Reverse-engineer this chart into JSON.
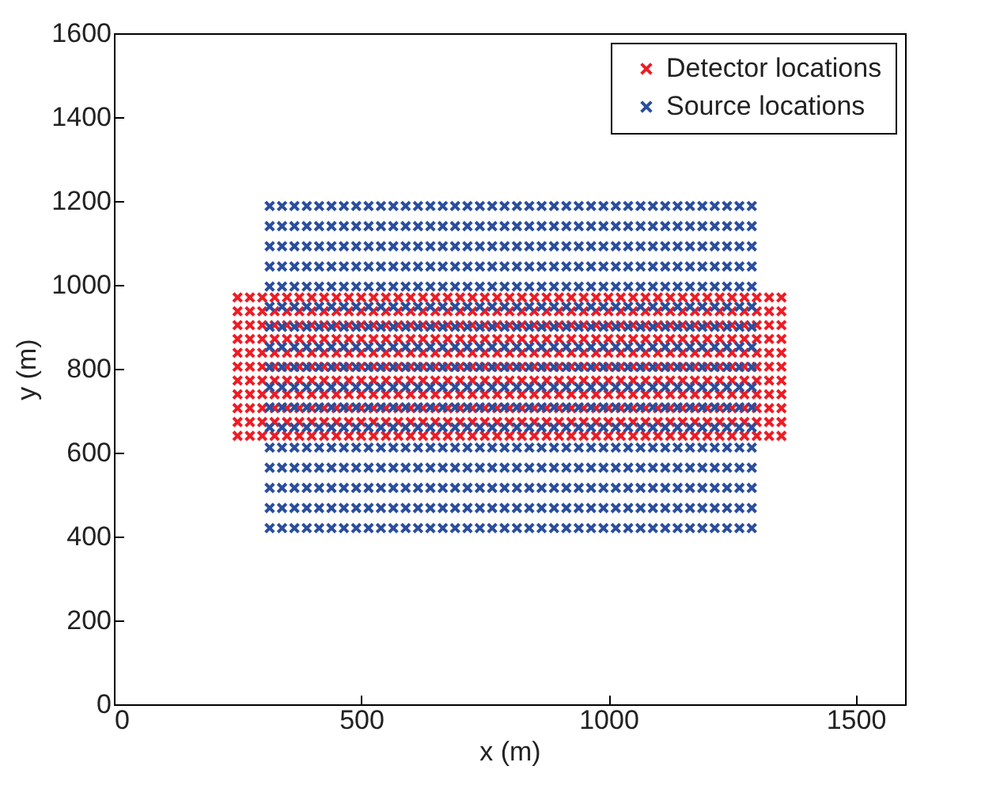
{
  "chart_data": {
    "type": "scatter",
    "xlabel": "x (m)",
    "ylabel": "y (m)",
    "xlim": [
      0,
      1600
    ],
    "xticks": [
      0,
      500,
      1000,
      1500
    ],
    "ylim": [
      0,
      1600
    ],
    "yticks": [
      0,
      200,
      400,
      600,
      800,
      1000,
      1200,
      1400,
      1600
    ],
    "grid": false,
    "legend": "top right",
    "marker": "cross",
    "series": [
      {
        "name": "Detector locations",
        "color": "#ee1c25",
        "x": [
          250,
          275,
          300,
          325,
          350,
          375,
          400,
          425,
          450,
          475,
          500,
          525,
          550,
          575,
          600,
          625,
          650,
          675,
          700,
          725,
          750,
          775,
          800,
          825,
          850,
          875,
          900,
          925,
          950,
          975,
          1000,
          1025,
          1050,
          1075,
          1100,
          1125,
          1150,
          1175,
          1200,
          1225,
          1250,
          1275,
          1300,
          1325,
          1350,
          250,
          275,
          300,
          325,
          350,
          375,
          400,
          425,
          450,
          475,
          500,
          525,
          550,
          575,
          600,
          625,
          650,
          675,
          700,
          725,
          750,
          775,
          800,
          825,
          850,
          875,
          900,
          925,
          950,
          975,
          1000,
          1025,
          1050,
          1075,
          1100,
          1125,
          1150,
          1175,
          1200,
          1225,
          1250,
          1275,
          1300,
          1325,
          1350,
          250,
          275,
          300,
          325,
          350,
          375,
          400,
          425,
          450,
          475,
          500,
          525,
          550,
          575,
          600,
          625,
          650,
          675,
          700,
          725,
          750,
          775,
          800,
          825,
          850,
          875,
          900,
          925,
          950,
          975,
          1000,
          1025,
          1050,
          1075,
          1100,
          1125,
          1150,
          1175,
          1200,
          1225,
          1250,
          1275,
          1300,
          1325,
          1350,
          250,
          275,
          300,
          325,
          350,
          375,
          400,
          425,
          450,
          475,
          500,
          525,
          550,
          575,
          600,
          625,
          650,
          675,
          700,
          725,
          750,
          775,
          800,
          825,
          850,
          875,
          900,
          925,
          950,
          975,
          1000,
          1025,
          1050,
          1075,
          1100,
          1125,
          1150,
          1175,
          1200,
          1225,
          1250,
          1275,
          1300,
          1325,
          1350,
          250,
          275,
          300,
          325,
          350,
          375,
          400,
          425,
          450,
          475,
          500,
          525,
          550,
          575,
          600,
          625,
          650,
          675,
          700,
          725,
          750,
          775,
          800,
          825,
          850,
          875,
          900,
          925,
          950,
          975,
          1000,
          1025,
          1050,
          1075,
          1100,
          1125,
          1150,
          1175,
          1200,
          1225,
          1250,
          1275,
          1300,
          1325,
          1350,
          250,
          275,
          300,
          325,
          350,
          375,
          400,
          425,
          450,
          475,
          500,
          525,
          550,
          575,
          600,
          625,
          650,
          675,
          700,
          725,
          750,
          775,
          800,
          825,
          850,
          875,
          900,
          925,
          950,
          975,
          1000,
          1025,
          1050,
          1075,
          1100,
          1125,
          1150,
          1175,
          1200,
          1225,
          1250,
          1275,
          1300,
          1325,
          1350,
          250,
          275,
          300,
          325,
          350,
          375,
          400,
          425,
          450,
          475,
          500,
          525,
          550,
          575,
          600,
          625,
          650,
          675,
          700,
          725,
          750,
          775,
          800,
          825,
          850,
          875,
          900,
          925,
          950,
          975,
          1000,
          1025,
          1050,
          1075,
          1100,
          1125,
          1150,
          1175,
          1200,
          1225,
          1250,
          1275,
          1300,
          1325,
          1350,
          250,
          275,
          300,
          325,
          350,
          375,
          400,
          425,
          450,
          475,
          500,
          525,
          550,
          575,
          600,
          625,
          650,
          675,
          700,
          725,
          750,
          775,
          800,
          825,
          850,
          875,
          900,
          925,
          950,
          975,
          1000,
          1025,
          1050,
          1075,
          1100,
          1125,
          1150,
          1175,
          1200,
          1225,
          1250,
          1275,
          1300,
          1325,
          1350,
          250,
          275,
          300,
          325,
          350,
          375,
          400,
          425,
          450,
          475,
          500,
          525,
          550,
          575,
          600,
          625,
          650,
          675,
          700,
          725,
          750,
          775,
          800,
          825,
          850,
          875,
          900,
          925,
          950,
          975,
          1000,
          1025,
          1050,
          1075,
          1100,
          1125,
          1150,
          1175,
          1200,
          1225,
          1250,
          1275,
          1300,
          1325,
          1350,
          250,
          275,
          300,
          325,
          350,
          375,
          400,
          425,
          450,
          475,
          500,
          525,
          550,
          575,
          600,
          625,
          650,
          675,
          700,
          725,
          750,
          775,
          800,
          825,
          850,
          875,
          900,
          925,
          950,
          975,
          1000,
          1025,
          1050,
          1075,
          1100,
          1125,
          1150,
          1175,
          1200,
          1225,
          1250,
          1275,
          1300,
          1325,
          1350,
          250,
          275,
          300,
          325,
          350,
          375,
          400,
          425,
          450,
          475,
          500,
          525,
          550,
          575,
          600,
          625,
          650,
          675,
          700,
          725,
          750,
          775,
          800,
          825,
          850,
          875,
          900,
          925,
          950,
          975,
          1000,
          1025,
          1050,
          1075,
          1100,
          1125,
          1150,
          1175,
          1200,
          1225,
          1250,
          1275,
          1300,
          1325,
          1350
        ],
        "values": [
          640,
          640,
          640,
          640,
          640,
          640,
          640,
          640,
          640,
          640,
          640,
          640,
          640,
          640,
          640,
          640,
          640,
          640,
          640,
          640,
          640,
          640,
          640,
          640,
          640,
          640,
          640,
          640,
          640,
          640,
          640,
          640,
          640,
          640,
          640,
          640,
          640,
          640,
          640,
          640,
          640,
          640,
          640,
          640,
          640,
          673,
          673,
          673,
          673,
          673,
          673,
          673,
          673,
          673,
          673,
          673,
          673,
          673,
          673,
          673,
          673,
          673,
          673,
          673,
          673,
          673,
          673,
          673,
          673,
          673,
          673,
          673,
          673,
          673,
          673,
          673,
          673,
          673,
          673,
          673,
          673,
          673,
          673,
          673,
          673,
          673,
          673,
          673,
          673,
          673,
          706,
          706,
          706,
          706,
          706,
          706,
          706,
          706,
          706,
          706,
          706,
          706,
          706,
          706,
          706,
          706,
          706,
          706,
          706,
          706,
          706,
          706,
          706,
          706,
          706,
          706,
          706,
          706,
          706,
          706,
          706,
          706,
          706,
          706,
          706,
          706,
          706,
          706,
          706,
          706,
          706,
          706,
          706,
          706,
          706,
          739,
          739,
          739,
          739,
          739,
          739,
          739,
          739,
          739,
          739,
          739,
          739,
          739,
          739,
          739,
          739,
          739,
          739,
          739,
          739,
          739,
          739,
          739,
          739,
          739,
          739,
          739,
          739,
          739,
          739,
          739,
          739,
          739,
          739,
          739,
          739,
          739,
          739,
          739,
          739,
          739,
          739,
          739,
          739,
          739,
          772,
          772,
          772,
          772,
          772,
          772,
          772,
          772,
          772,
          772,
          772,
          772,
          772,
          772,
          772,
          772,
          772,
          772,
          772,
          772,
          772,
          772,
          772,
          772,
          772,
          772,
          772,
          772,
          772,
          772,
          772,
          772,
          772,
          772,
          772,
          772,
          772,
          772,
          772,
          772,
          772,
          772,
          772,
          772,
          772,
          805,
          805,
          805,
          805,
          805,
          805,
          805,
          805,
          805,
          805,
          805,
          805,
          805,
          805,
          805,
          805,
          805,
          805,
          805,
          805,
          805,
          805,
          805,
          805,
          805,
          805,
          805,
          805,
          805,
          805,
          805,
          805,
          805,
          805,
          805,
          805,
          805,
          805,
          805,
          805,
          805,
          805,
          805,
          805,
          805,
          838,
          838,
          838,
          838,
          838,
          838,
          838,
          838,
          838,
          838,
          838,
          838,
          838,
          838,
          838,
          838,
          838,
          838,
          838,
          838,
          838,
          838,
          838,
          838,
          838,
          838,
          838,
          838,
          838,
          838,
          838,
          838,
          838,
          838,
          838,
          838,
          838,
          838,
          838,
          838,
          838,
          838,
          838,
          838,
          838,
          871,
          871,
          871,
          871,
          871,
          871,
          871,
          871,
          871,
          871,
          871,
          871,
          871,
          871,
          871,
          871,
          871,
          871,
          871,
          871,
          871,
          871,
          871,
          871,
          871,
          871,
          871,
          871,
          871,
          871,
          871,
          871,
          871,
          871,
          871,
          871,
          871,
          871,
          871,
          871,
          871,
          871,
          871,
          871,
          871,
          904,
          904,
          904,
          904,
          904,
          904,
          904,
          904,
          904,
          904,
          904,
          904,
          904,
          904,
          904,
          904,
          904,
          904,
          904,
          904,
          904,
          904,
          904,
          904,
          904,
          904,
          904,
          904,
          904,
          904,
          904,
          904,
          904,
          904,
          904,
          904,
          904,
          904,
          904,
          904,
          904,
          904,
          904,
          904,
          904,
          937,
          937,
          937,
          937,
          937,
          937,
          937,
          937,
          937,
          937,
          937,
          937,
          937,
          937,
          937,
          937,
          937,
          937,
          937,
          937,
          937,
          937,
          937,
          937,
          937,
          937,
          937,
          937,
          937,
          937,
          937,
          937,
          937,
          937,
          937,
          937,
          937,
          937,
          937,
          937,
          937,
          937,
          937,
          937,
          937,
          970,
          970,
          970,
          970,
          970,
          970,
          970,
          970,
          970,
          970,
          970,
          970,
          970,
          970,
          970,
          970,
          970,
          970,
          970,
          970,
          970,
          970,
          970,
          970,
          970,
          970,
          970,
          970,
          970,
          970,
          970,
          970,
          970,
          970,
          970,
          970,
          970,
          970,
          970,
          970,
          970,
          970,
          970,
          970,
          970
        ]
      },
      {
        "name": "Source locations",
        "color": "#2a4e9e",
        "x": [
          315,
          340,
          365,
          390,
          415,
          440,
          465,
          490,
          515,
          540,
          565,
          590,
          615,
          640,
          665,
          690,
          715,
          740,
          765,
          790,
          815,
          840,
          865,
          890,
          915,
          940,
          965,
          990,
          1015,
          1040,
          1065,
          1090,
          1115,
          1140,
          1165,
          1190,
          1215,
          1240,
          1265,
          1290,
          315,
          340,
          365,
          390,
          415,
          440,
          465,
          490,
          515,
          540,
          565,
          590,
          615,
          640,
          665,
          690,
          715,
          740,
          765,
          790,
          815,
          840,
          865,
          890,
          915,
          940,
          965,
          990,
          1015,
          1040,
          1065,
          1090,
          1115,
          1140,
          1165,
          1190,
          1215,
          1240,
          1265,
          1290,
          315,
          340,
          365,
          390,
          415,
          440,
          465,
          490,
          515,
          540,
          565,
          590,
          615,
          640,
          665,
          690,
          715,
          740,
          765,
          790,
          815,
          840,
          865,
          890,
          915,
          940,
          965,
          990,
          1015,
          1040,
          1065,
          1090,
          1115,
          1140,
          1165,
          1190,
          1215,
          1240,
          1265,
          1290,
          315,
          340,
          365,
          390,
          415,
          440,
          465,
          490,
          515,
          540,
          565,
          590,
          615,
          640,
          665,
          690,
          715,
          740,
          765,
          790,
          815,
          840,
          865,
          890,
          915,
          940,
          965,
          990,
          1015,
          1040,
          1065,
          1090,
          1115,
          1140,
          1165,
          1190,
          1215,
          1240,
          1265,
          1290,
          315,
          340,
          365,
          390,
          415,
          440,
          465,
          490,
          515,
          540,
          565,
          590,
          615,
          640,
          665,
          690,
          715,
          740,
          765,
          790,
          815,
          840,
          865,
          890,
          915,
          940,
          965,
          990,
          1015,
          1040,
          1065,
          1090,
          1115,
          1140,
          1165,
          1190,
          1215,
          1240,
          1265,
          1290,
          315,
          340,
          365,
          390,
          415,
          440,
          465,
          490,
          515,
          540,
          565,
          590,
          615,
          640,
          665,
          690,
          715,
          740,
          765,
          790,
          815,
          840,
          865,
          890,
          915,
          940,
          965,
          990,
          1015,
          1040,
          1065,
          1090,
          1115,
          1140,
          1165,
          1190,
          1215,
          1240,
          1265,
          1290,
          315,
          340,
          365,
          390,
          415,
          440,
          465,
          490,
          515,
          540,
          565,
          590,
          615,
          640,
          665,
          690,
          715,
          740,
          765,
          790,
          815,
          840,
          865,
          890,
          915,
          940,
          965,
          990,
          1015,
          1040,
          1065,
          1090,
          1115,
          1140,
          1165,
          1190,
          1215,
          1240,
          1265,
          1290,
          315,
          340,
          365,
          390,
          415,
          440,
          465,
          490,
          515,
          540,
          565,
          590,
          615,
          640,
          665,
          690,
          715,
          740,
          765,
          790,
          815,
          840,
          865,
          890,
          915,
          940,
          965,
          990,
          1015,
          1040,
          1065,
          1090,
          1115,
          1140,
          1165,
          1190,
          1215,
          1240,
          1265,
          1290,
          315,
          340,
          365,
          390,
          415,
          440,
          465,
          490,
          515,
          540,
          565,
          590,
          615,
          640,
          665,
          690,
          715,
          740,
          765,
          790,
          815,
          840,
          865,
          890,
          915,
          940,
          965,
          990,
          1015,
          1040,
          1065,
          1090,
          1115,
          1140,
          1165,
          1190,
          1215,
          1240,
          1265,
          1290,
          315,
          340,
          365,
          390,
          415,
          440,
          465,
          490,
          515,
          540,
          565,
          590,
          615,
          640,
          665,
          690,
          715,
          740,
          765,
          790,
          815,
          840,
          865,
          890,
          915,
          940,
          965,
          990,
          1015,
          1040,
          1065,
          1090,
          1115,
          1140,
          1165,
          1190,
          1215,
          1240,
          1265,
          1290,
          315,
          340,
          365,
          390,
          415,
          440,
          465,
          490,
          515,
          540,
          565,
          590,
          615,
          640,
          665,
          690,
          715,
          740,
          765,
          790,
          815,
          840,
          865,
          890,
          915,
          940,
          965,
          990,
          1015,
          1040,
          1065,
          1090,
          1115,
          1140,
          1165,
          1190,
          1215,
          1240,
          1265,
          1290,
          315,
          340,
          365,
          390,
          415,
          440,
          465,
          490,
          515,
          540,
          565,
          590,
          615,
          640,
          665,
          690,
          715,
          740,
          765,
          790,
          815,
          840,
          865,
          890,
          915,
          940,
          965,
          990,
          1015,
          1040,
          1065,
          1090,
          1115,
          1140,
          1165,
          1190,
          1215,
          1240,
          1265,
          1290,
          315,
          340,
          365,
          390,
          415,
          440,
          465,
          490,
          515,
          540,
          565,
          590,
          615,
          640,
          665,
          690,
          715,
          740,
          765,
          790,
          815,
          840,
          865,
          890,
          915,
          940,
          965,
          990,
          1015,
          1040,
          1065,
          1090,
          1115,
          1140,
          1165,
          1190,
          1215,
          1240,
          1265,
          1290,
          315,
          340,
          365,
          390,
          415,
          440,
          465,
          490,
          515,
          540,
          565,
          590,
          615,
          640,
          665,
          690,
          715,
          740,
          765,
          790,
          815,
          840,
          865,
          890,
          915,
          940,
          965,
          990,
          1015,
          1040,
          1065,
          1090,
          1115,
          1140,
          1165,
          1190,
          1215,
          1240,
          1265,
          1290,
          315,
          340,
          365,
          390,
          415,
          440,
          465,
          490,
          515,
          540,
          565,
          590,
          615,
          640,
          665,
          690,
          715,
          740,
          765,
          790,
          815,
          840,
          865,
          890,
          915,
          940,
          965,
          990,
          1015,
          1040,
          1065,
          1090,
          1115,
          1140,
          1165,
          1190,
          1215,
          1240,
          1265,
          1290,
          315,
          340,
          365,
          390,
          415,
          440,
          465,
          490,
          515,
          540,
          565,
          590,
          615,
          640,
          665,
          690,
          715,
          740,
          765,
          790,
          815,
          840,
          865,
          890,
          915,
          940,
          965,
          990,
          1015,
          1040,
          1065,
          1090,
          1115,
          1140,
          1165,
          1190,
          1215,
          1240,
          1265,
          1290,
          315,
          340,
          365,
          390,
          415,
          440,
          465,
          490,
          515,
          540,
          565,
          590,
          615,
          640,
          665,
          690,
          715,
          740,
          765,
          790,
          815,
          840,
          865,
          890,
          915,
          940,
          965,
          990,
          1015,
          1040,
          1065,
          1090,
          1115,
          1140,
          1165,
          1190,
          1215,
          1240,
          1265,
          1290
        ],
        "values": [
          420,
          420,
          420,
          420,
          420,
          420,
          420,
          420,
          420,
          420,
          420,
          420,
          420,
          420,
          420,
          420,
          420,
          420,
          420,
          420,
          420,
          420,
          420,
          420,
          420,
          420,
          420,
          420,
          420,
          420,
          420,
          420,
          420,
          420,
          420,
          420,
          420,
          420,
          420,
          420,
          468,
          468,
          468,
          468,
          468,
          468,
          468,
          468,
          468,
          468,
          468,
          468,
          468,
          468,
          468,
          468,
          468,
          468,
          468,
          468,
          468,
          468,
          468,
          468,
          468,
          468,
          468,
          468,
          468,
          468,
          468,
          468,
          468,
          468,
          468,
          468,
          468,
          468,
          468,
          468,
          516,
          516,
          516,
          516,
          516,
          516,
          516,
          516,
          516,
          516,
          516,
          516,
          516,
          516,
          516,
          516,
          516,
          516,
          516,
          516,
          516,
          516,
          516,
          516,
          516,
          516,
          516,
          516,
          516,
          516,
          516,
          516,
          516,
          516,
          516,
          516,
          516,
          516,
          516,
          516,
          564,
          564,
          564,
          564,
          564,
          564,
          564,
          564,
          564,
          564,
          564,
          564,
          564,
          564,
          564,
          564,
          564,
          564,
          564,
          564,
          564,
          564,
          564,
          564,
          564,
          564,
          564,
          564,
          564,
          564,
          564,
          564,
          564,
          564,
          564,
          564,
          564,
          564,
          564,
          564,
          612,
          612,
          612,
          612,
          612,
          612,
          612,
          612,
          612,
          612,
          612,
          612,
          612,
          612,
          612,
          612,
          612,
          612,
          612,
          612,
          612,
          612,
          612,
          612,
          612,
          612,
          612,
          612,
          612,
          612,
          612,
          612,
          612,
          612,
          612,
          612,
          612,
          612,
          612,
          612,
          660,
          660,
          660,
          660,
          660,
          660,
          660,
          660,
          660,
          660,
          660,
          660,
          660,
          660,
          660,
          660,
          660,
          660,
          660,
          660,
          660,
          660,
          660,
          660,
          660,
          660,
          660,
          660,
          660,
          660,
          660,
          660,
          660,
          660,
          660,
          660,
          660,
          660,
          660,
          660,
          708,
          708,
          708,
          708,
          708,
          708,
          708,
          708,
          708,
          708,
          708,
          708,
          708,
          708,
          708,
          708,
          708,
          708,
          708,
          708,
          708,
          708,
          708,
          708,
          708,
          708,
          708,
          708,
          708,
          708,
          708,
          708,
          708,
          708,
          708,
          708,
          708,
          708,
          708,
          708,
          756,
          756,
          756,
          756,
          756,
          756,
          756,
          756,
          756,
          756,
          756,
          756,
          756,
          756,
          756,
          756,
          756,
          756,
          756,
          756,
          756,
          756,
          756,
          756,
          756,
          756,
          756,
          756,
          756,
          756,
          756,
          756,
          756,
          756,
          756,
          756,
          756,
          756,
          756,
          756,
          804,
          804,
          804,
          804,
          804,
          804,
          804,
          804,
          804,
          804,
          804,
          804,
          804,
          804,
          804,
          804,
          804,
          804,
          804,
          804,
          804,
          804,
          804,
          804,
          804,
          804,
          804,
          804,
          804,
          804,
          804,
          804,
          804,
          804,
          804,
          804,
          804,
          804,
          804,
          804,
          852,
          852,
          852,
          852,
          852,
          852,
          852,
          852,
          852,
          852,
          852,
          852,
          852,
          852,
          852,
          852,
          852,
          852,
          852,
          852,
          852,
          852,
          852,
          852,
          852,
          852,
          852,
          852,
          852,
          852,
          852,
          852,
          852,
          852,
          852,
          852,
          852,
          852,
          852,
          852,
          900,
          900,
          900,
          900,
          900,
          900,
          900,
          900,
          900,
          900,
          900,
          900,
          900,
          900,
          900,
          900,
          900,
          900,
          900,
          900,
          900,
          900,
          900,
          900,
          900,
          900,
          900,
          900,
          900,
          900,
          900,
          900,
          900,
          900,
          900,
          900,
          900,
          900,
          900,
          900,
          948,
          948,
          948,
          948,
          948,
          948,
          948,
          948,
          948,
          948,
          948,
          948,
          948,
          948,
          948,
          948,
          948,
          948,
          948,
          948,
          948,
          948,
          948,
          948,
          948,
          948,
          948,
          948,
          948,
          948,
          948,
          948,
          948,
          948,
          948,
          948,
          948,
          948,
          948,
          948,
          996,
          996,
          996,
          996,
          996,
          996,
          996,
          996,
          996,
          996,
          996,
          996,
          996,
          996,
          996,
          996,
          996,
          996,
          996,
          996,
          996,
          996,
          996,
          996,
          996,
          996,
          996,
          996,
          996,
          996,
          996,
          996,
          996,
          996,
          996,
          996,
          996,
          996,
          996,
          996,
          1044,
          1044,
          1044,
          1044,
          1044,
          1044,
          1044,
          1044,
          1044,
          1044,
          1044,
          1044,
          1044,
          1044,
          1044,
          1044,
          1044,
          1044,
          1044,
          1044,
          1044,
          1044,
          1044,
          1044,
          1044,
          1044,
          1044,
          1044,
          1044,
          1044,
          1044,
          1044,
          1044,
          1044,
          1044,
          1044,
          1044,
          1044,
          1044,
          1044,
          1092,
          1092,
          1092,
          1092,
          1092,
          1092,
          1092,
          1092,
          1092,
          1092,
          1092,
          1092,
          1092,
          1092,
          1092,
          1092,
          1092,
          1092,
          1092,
          1092,
          1092,
          1092,
          1092,
          1092,
          1092,
          1092,
          1092,
          1092,
          1092,
          1092,
          1092,
          1092,
          1092,
          1092,
          1092,
          1092,
          1092,
          1092,
          1092,
          1092,
          1140,
          1140,
          1140,
          1140,
          1140,
          1140,
          1140,
          1140,
          1140,
          1140,
          1140,
          1140,
          1140,
          1140,
          1140,
          1140,
          1140,
          1140,
          1140,
          1140,
          1140,
          1140,
          1140,
          1140,
          1140,
          1140,
          1140,
          1140,
          1140,
          1140,
          1140,
          1140,
          1140,
          1140,
          1140,
          1140,
          1140,
          1140,
          1140,
          1140,
          1188,
          1188,
          1188,
          1188,
          1188,
          1188,
          1188,
          1188,
          1188,
          1188,
          1188,
          1188,
          1188,
          1188,
          1188,
          1188,
          1188,
          1188,
          1188,
          1188,
          1188,
          1188,
          1188,
          1188,
          1188,
          1188,
          1188,
          1188,
          1188,
          1188,
          1188,
          1188,
          1188,
          1188,
          1188,
          1188,
          1188,
          1188,
          1188,
          1188
        ]
      }
    ]
  }
}
